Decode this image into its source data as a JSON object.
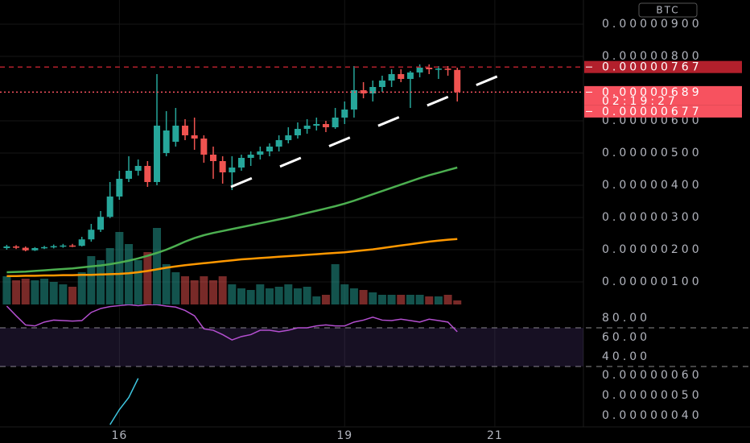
{
  "currency": "BTC",
  "chart_data": [
    {
      "type": "candlestick",
      "x": [
        14.5,
        14.625,
        14.75,
        14.875,
        15,
        15.125,
        15.25,
        15.375,
        15.5,
        15.625,
        15.75,
        15.875,
        16,
        16.125,
        16.25,
        16.375,
        16.5,
        16.625,
        16.75,
        16.875,
        17,
        17.125,
        17.25,
        17.375,
        17.5,
        17.625,
        17.75,
        17.875,
        18,
        18.125,
        18.25,
        18.375,
        18.5,
        18.625,
        18.75,
        18.875,
        19,
        19.125,
        19.25,
        19.375,
        19.5,
        19.625,
        19.75,
        19.875,
        20,
        20.125,
        20.25,
        20.375,
        20.5
      ],
      "open": [
        2.05e-06,
        2.1e-06,
        2.06e-06,
        1.98e-06,
        2.05e-06,
        2.08e-06,
        2.11e-06,
        2.13e-06,
        2.12e-06,
        2.32e-06,
        2.62e-06,
        3.02e-06,
        3.65e-06,
        4.2e-06,
        4.45e-06,
        4.6e-06,
        4.1e-06,
        5e-06,
        5.35e-06,
        5.85e-06,
        5.55e-06,
        5.45e-06,
        4.95e-06,
        4.75e-06,
        4.4e-06,
        4.55e-06,
        4.85e-06,
        4.95e-06,
        5.05e-06,
        5.2e-06,
        5.4e-06,
        5.55e-06,
        5.75e-06,
        5.85e-06,
        5.9e-06,
        5.8e-06,
        6.1e-06,
        6.35e-06,
        6.95e-06,
        6.85e-06,
        7.05e-06,
        7.25e-06,
        7.45e-06,
        7.3e-06,
        7.5e-06,
        7.65e-06,
        7.6e-06,
        7.62e-06,
        7.58e-06
      ],
      "high": [
        2.15e-06,
        2.14e-06,
        2.1e-06,
        2.08e-06,
        2.12e-06,
        2.16e-06,
        2.18e-06,
        2.18e-06,
        2.4e-06,
        2.8e-06,
        3.2e-06,
        4.1e-06,
        4.45e-06,
        4.9e-06,
        4.8e-06,
        4.75e-06,
        7.45e-06,
        6.3e-06,
        6.4e-06,
        6.05e-06,
        6.1e-06,
        5.55e-06,
        5.2e-06,
        4.9e-06,
        4.9e-06,
        4.95e-06,
        5.05e-06,
        5.2e-06,
        5.3e-06,
        5.55e-06,
        5.8e-06,
        5.95e-06,
        6.05e-06,
        6.1e-06,
        6e-06,
        6.4e-06,
        6.6e-06,
        7.7e-06,
        7.2e-06,
        7.25e-06,
        7.4e-06,
        7.6e-06,
        7.6e-06,
        7.55e-06,
        7.75e-06,
        7.75e-06,
        7.7e-06,
        7.7e-06,
        7.65e-06
      ],
      "low": [
        2e-06,
        2.02e-06,
        1.95e-06,
        1.96e-06,
        2.02e-06,
        2.04e-06,
        2.06e-06,
        2.08e-06,
        2.1e-06,
        2.25e-06,
        2.55e-06,
        2.98e-06,
        3.55e-06,
        4.1e-06,
        4.3e-06,
        3.95e-06,
        4e-06,
        4.9e-06,
        5.2e-06,
        5.4e-06,
        5.1e-06,
        4.7e-06,
        4.2e-06,
        4.05e-06,
        3.85e-06,
        4.45e-06,
        4.6e-06,
        4.8e-06,
        4.9e-06,
        5.05e-06,
        5.3e-06,
        5.45e-06,
        5.6e-06,
        5.7e-06,
        5.65e-06,
        5.75e-06,
        5.9e-06,
        6.1e-06,
        6.7e-06,
        6.6e-06,
        6.9e-06,
        7.05e-06,
        7.2e-06,
        6.4e-06,
        7.35e-06,
        7.45e-06,
        7.3e-06,
        7.4e-06,
        6.6e-06
      ],
      "close": [
        2.1e-06,
        2.06e-06,
        1.98e-06,
        2.05e-06,
        2.08e-06,
        2.11e-06,
        2.13e-06,
        2.12e-06,
        2.32e-06,
        2.62e-06,
        3.02e-06,
        3.65e-06,
        4.2e-06,
        4.45e-06,
        4.6e-06,
        4.1e-06,
        5.85e-06,
        5.7e-06,
        5.85e-06,
        5.55e-06,
        5.45e-06,
        4.95e-06,
        4.75e-06,
        4.4e-06,
        4.55e-06,
        4.85e-06,
        4.95e-06,
        5.05e-06,
        5.2e-06,
        5.4e-06,
        5.55e-06,
        5.75e-06,
        5.85e-06,
        5.9e-06,
        5.8e-06,
        6.1e-06,
        6.35e-06,
        6.95e-06,
        6.85e-06,
        7.05e-06,
        7.25e-06,
        7.45e-06,
        7.3e-06,
        7.5e-06,
        7.65e-06,
        7.6e-06,
        7.62e-06,
        7.58e-06,
        6.89e-06
      ],
      "volume": [
        35,
        30,
        32,
        30,
        32,
        28,
        25,
        22,
        40,
        60,
        55,
        70,
        90,
        75,
        55,
        65,
        95,
        50,
        40,
        35,
        30,
        35,
        30,
        35,
        25,
        20,
        18,
        25,
        20,
        22,
        25,
        20,
        22,
        10,
        12,
        50,
        25,
        20,
        18,
        15,
        12,
        12,
        12,
        12,
        12,
        10,
        10,
        12,
        5
      ],
      "up_color": "#26a69a",
      "down_color": "#ef5350",
      "overlays": [
        {
          "color": "#4caf50",
          "values": [
            1.3e-06,
            1.31e-06,
            1.32e-06,
            1.34e-06,
            1.36e-06,
            1.38e-06,
            1.4e-06,
            1.42e-06,
            1.45e-06,
            1.48e-06,
            1.51e-06,
            1.55e-06,
            1.6e-06,
            1.66e-06,
            1.73e-06,
            1.81e-06,
            1.9e-06,
            2e-06,
            2.12e-06,
            2.25e-06,
            2.36e-06,
            2.45e-06,
            2.52e-06,
            2.58e-06,
            2.64e-06,
            2.7e-06,
            2.76e-06,
            2.82e-06,
            2.88e-06,
            2.94e-06,
            3e-06,
            3.07e-06,
            3.14e-06,
            3.21e-06,
            3.28e-06,
            3.35e-06,
            3.43e-06,
            3.52e-06,
            3.62e-06,
            3.72e-06,
            3.82e-06,
            3.92e-06,
            4.02e-06,
            4.12e-06,
            4.22e-06,
            4.31e-06,
            4.39e-06,
            4.47e-06,
            4.55e-06
          ]
        },
        {
          "color": "#ff9800",
          "values": [
            1.18e-06,
            1.18e-06,
            1.19e-06,
            1.19e-06,
            1.2e-06,
            1.2e-06,
            1.21e-06,
            1.21e-06,
            1.22e-06,
            1.22e-06,
            1.23e-06,
            1.24e-06,
            1.25e-06,
            1.27e-06,
            1.3e-06,
            1.34e-06,
            1.39e-06,
            1.44e-06,
            1.48e-06,
            1.52e-06,
            1.55e-06,
            1.58e-06,
            1.61e-06,
            1.64e-06,
            1.67e-06,
            1.7e-06,
            1.72e-06,
            1.74e-06,
            1.76e-06,
            1.78e-06,
            1.8e-06,
            1.82e-06,
            1.84e-06,
            1.86e-06,
            1.88e-06,
            1.9e-06,
            1.92e-06,
            1.95e-06,
            1.98e-06,
            2.01e-06,
            2.05e-06,
            2.09e-06,
            2.13e-06,
            2.17e-06,
            2.21e-06,
            2.25e-06,
            2.28e-06,
            2.31e-06,
            2.33e-06
          ]
        }
      ],
      "ylim": [
        3e-07,
        9.75e-06
      ],
      "yticks": [
        {
          "value": 9e-06,
          "label": "0.00000900"
        },
        {
          "value": 8e-06,
          "label": "0.00000800"
        },
        {
          "value": 6e-06,
          "label": "0.00000600"
        },
        {
          "value": 5e-06,
          "label": "0.00000500"
        },
        {
          "value": 4e-06,
          "label": "0.00000400"
        },
        {
          "value": 3e-06,
          "label": "0.00000300"
        },
        {
          "value": 2e-06,
          "label": "0.00000200"
        },
        {
          "value": 1e-06,
          "label": "0.00000100"
        }
      ],
      "xlim": [
        14.41,
        22.18
      ],
      "xticks": [
        16,
        19,
        21
      ],
      "grid": true,
      "price_lines": [
        {
          "value": 7.67e-06,
          "label": "0.00000767",
          "color": "#b2202c",
          "dash": "6 5"
        },
        {
          "value": 6.89e-06,
          "label": "0.00000689",
          "color": "#f7525f",
          "dash": "2 3",
          "countdown": "02:19:27"
        },
        {
          "value": 6.77e-06,
          "label": "0.00000677",
          "color": "#f7525f"
        }
      ]
    },
    {
      "type": "line",
      "color": "#b44fd0",
      "values": [
        92.5,
        82.5,
        73,
        72,
        76,
        78,
        77.5,
        77,
        77.5,
        86,
        90,
        92,
        93,
        94,
        93,
        94,
        94,
        92.5,
        91.5,
        88,
        82.5,
        69,
        67.5,
        63,
        57.5,
        61,
        63,
        67.5,
        67.5,
        66,
        67.5,
        70,
        70,
        72,
        73,
        72,
        72,
        76,
        78,
        81,
        78,
        77.5,
        79,
        77.5,
        76,
        79,
        77.5,
        76,
        66
      ],
      "ylim": [
        24.2,
        94.2
      ],
      "yticks": [
        {
          "value": 80,
          "label": "80.00"
        },
        {
          "value": 60,
          "label": "60.00"
        },
        {
          "value": 40,
          "label": "40.00"
        }
      ],
      "band": [
        30,
        70
      ]
    },
    {
      "type": "line",
      "color": "#3ec6e0",
      "values": [
        null,
        null,
        null,
        null,
        null,
        null,
        null,
        null,
        null,
        null,
        null,
        3.55e-07,
        4.3e-07,
        4.9e-07,
        5.85e-07,
        null,
        null,
        null,
        null,
        null,
        null,
        null,
        null,
        null,
        null,
        null,
        null,
        null,
        null,
        null,
        null,
        null,
        null,
        null,
        null,
        null,
        null,
        null,
        null,
        null,
        null,
        null,
        null,
        null,
        null,
        null,
        null,
        null,
        null
      ],
      "ylim": [
        3.44e-07,
        6.16e-07
      ],
      "yticks": [
        {
          "value": 6e-07,
          "label": "0.00000060"
        },
        {
          "value": 5e-07,
          "label": "0.00000050"
        },
        {
          "value": 4e-07,
          "label": "0.00000040"
        }
      ]
    }
  ]
}
